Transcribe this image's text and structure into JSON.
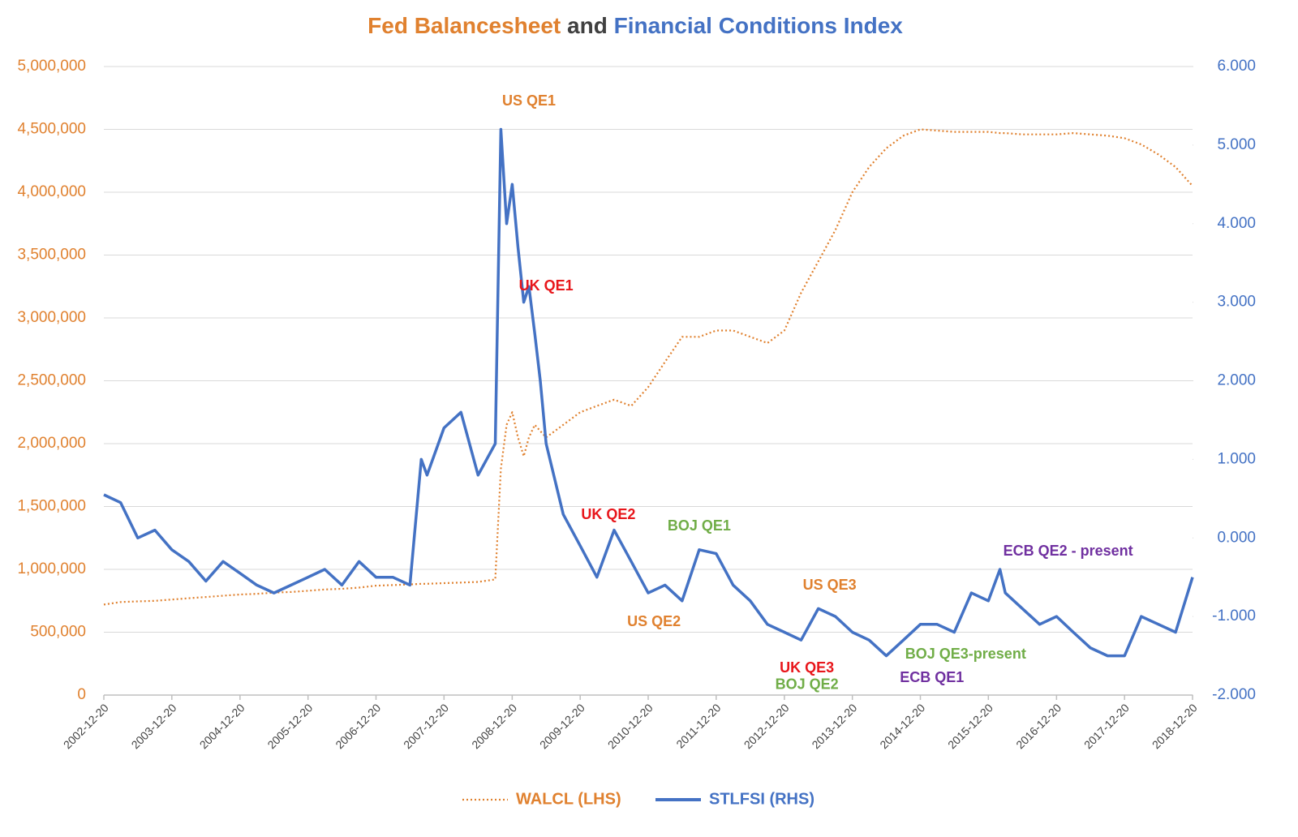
{
  "chart_data": {
    "type": "line",
    "title_parts": [
      {
        "text": "Fed Balancesheet",
        "color": "#e0812f"
      },
      {
        "text": "and",
        "color": "#404040"
      },
      {
        "text": "Financial Conditions Index",
        "color": "#4472c4"
      }
    ],
    "x": [
      "2002-12-20",
      "2003-03-20",
      "2003-06-20",
      "2003-09-20",
      "2003-12-20",
      "2004-03-20",
      "2004-06-20",
      "2004-09-20",
      "2004-12-20",
      "2005-03-20",
      "2005-06-20",
      "2005-09-20",
      "2005-12-20",
      "2006-03-20",
      "2006-06-20",
      "2006-09-20",
      "2006-12-20",
      "2007-03-20",
      "2007-06-20",
      "2007-08-20",
      "2007-09-20",
      "2007-12-20",
      "2008-03-20",
      "2008-06-20",
      "2008-09-20",
      "2008-10-20",
      "2008-11-20",
      "2008-12-20",
      "2009-01-20",
      "2009-02-20",
      "2009-03-20",
      "2009-04-20",
      "2009-05-20",
      "2009-06-20",
      "2009-09-20",
      "2009-12-20",
      "2010-03-20",
      "2010-06-20",
      "2010-09-20",
      "2010-12-20",
      "2011-03-20",
      "2011-06-20",
      "2011-09-20",
      "2011-12-20",
      "2012-03-20",
      "2012-06-20",
      "2012-09-20",
      "2012-12-20",
      "2013-03-20",
      "2013-06-20",
      "2013-09-20",
      "2013-12-20",
      "2014-03-20",
      "2014-06-20",
      "2014-09-20",
      "2014-12-20",
      "2015-03-20",
      "2015-06-20",
      "2015-09-20",
      "2015-12-20",
      "2016-02-20",
      "2016-03-20",
      "2016-06-20",
      "2016-09-20",
      "2016-12-20",
      "2017-03-20",
      "2017-06-20",
      "2017-09-20",
      "2017-12-20",
      "2018-03-20",
      "2018-06-20",
      "2018-09-20",
      "2018-12-20"
    ],
    "series": [
      {
        "name": "WALCL (LHS)",
        "color": "#e0812f",
        "style": "dotted",
        "axis": "y",
        "values": [
          720000,
          740000,
          745000,
          750000,
          760000,
          770000,
          780000,
          790000,
          800000,
          805000,
          815000,
          820000,
          830000,
          840000,
          845000,
          855000,
          870000,
          875000,
          880000,
          885000,
          885000,
          890000,
          895000,
          900000,
          920000,
          1800000,
          2150000,
          2250000,
          2050000,
          1900000,
          2050000,
          2150000,
          2100000,
          2050000,
          2150000,
          2250000,
          2300000,
          2350000,
          2300000,
          2450000,
          2650000,
          2850000,
          2850000,
          2900000,
          2900000,
          2850000,
          2800000,
          2900000,
          3200000,
          3450000,
          3700000,
          4000000,
          4200000,
          4350000,
          4450000,
          4500000,
          4490000,
          4480000,
          4480000,
          4480000,
          4470000,
          4470000,
          4460000,
          4460000,
          4460000,
          4470000,
          4460000,
          4450000,
          4430000,
          4380000,
          4300000,
          4200000,
          4050000
        ]
      },
      {
        "name": "STLFSI (RHS)",
        "color": "#4472c4",
        "style": "solid",
        "axis": "y2",
        "values": [
          0.55,
          0.45,
          0.0,
          0.1,
          -0.15,
          -0.3,
          -0.55,
          -0.3,
          -0.45,
          -0.6,
          -0.7,
          -0.6,
          -0.5,
          -0.4,
          -0.6,
          -0.3,
          -0.5,
          -0.5,
          -0.6,
          1.0,
          0.8,
          1.4,
          1.6,
          0.8,
          1.2,
          5.2,
          4.0,
          4.5,
          3.7,
          3.0,
          3.2,
          2.6,
          2.0,
          1.2,
          0.3,
          -0.1,
          -0.5,
          0.1,
          -0.3,
          -0.7,
          -0.6,
          -0.8,
          -0.15,
          -0.2,
          -0.6,
          -0.8,
          -1.1,
          -1.2,
          -1.3,
          -0.9,
          -1.0,
          -1.2,
          -1.3,
          -1.5,
          -1.3,
          -1.1,
          -1.1,
          -1.2,
          -0.7,
          -0.8,
          -0.4,
          -0.7,
          -0.9,
          -1.1,
          -1.0,
          -1.2,
          -1.4,
          -1.5,
          -1.5,
          -1.0,
          -1.1,
          -1.2,
          -0.5
        ]
      }
    ],
    "xlim": [
      "2002-12-20",
      "2018-12-20"
    ],
    "xticks": [
      "2002-12-20",
      "2003-12-20",
      "2004-12-20",
      "2005-12-20",
      "2006-12-20",
      "2007-12-20",
      "2008-12-20",
      "2009-12-20",
      "2010-12-20",
      "2011-12-20",
      "2012-12-20",
      "2013-12-20",
      "2014-12-20",
      "2015-12-20",
      "2016-12-20",
      "2017-12-20",
      "2018-12-20"
    ],
    "ylim": [
      0,
      5000000
    ],
    "yticks": [
      0,
      {
        "value": 500000,
        "label": "500,000"
      },
      {
        "value": 1000000,
        "label": "1,000,000"
      },
      {
        "value": 1500000,
        "label": "1,500,000"
      },
      {
        "value": 2000000,
        "label": "2,000,000"
      },
      {
        "value": 2500000,
        "label": "2,500,000"
      },
      {
        "value": 3000000,
        "label": "3,000,000"
      },
      {
        "value": 3500000,
        "label": "3,500,000"
      },
      {
        "value": 4000000,
        "label": "4,000,000"
      },
      {
        "value": 4500000,
        "label": "4,500,000"
      },
      {
        "value": 5000000,
        "label": "5,000,000"
      }
    ],
    "y2lim": [
      -2,
      6
    ],
    "y2ticks": [
      {
        "value": -2,
        "label": "-2.000"
      },
      {
        "value": -1,
        "label": "-1.000"
      },
      {
        "value": 0,
        "label": "0.000"
      },
      {
        "value": 1,
        "label": "1.000"
      },
      {
        "value": 2,
        "label": "2.000"
      },
      {
        "value": 3,
        "label": "3.000"
      },
      {
        "value": 4,
        "label": "4.000"
      },
      {
        "value": 5,
        "label": "5.000"
      },
      {
        "value": 6,
        "label": "6.000"
      }
    ],
    "grid": true,
    "legend": "bottom",
    "annotations": [
      {
        "text": "US QE1",
        "color": "#e0812f",
        "x": "2009-03-20",
        "y": 4720000
      },
      {
        "text": "UK QE1",
        "color": "#e8161b",
        "x": "2009-06-20",
        "y": 3250000
      },
      {
        "text": "UK QE2",
        "color": "#e8161b",
        "x": "2010-05-20",
        "y": 1430000
      },
      {
        "text": "US QE2",
        "color": "#e0812f",
        "x": "2011-01-20",
        "y": 580000
      },
      {
        "text": "BOJ QE1",
        "color": "#70ad47",
        "x": "2011-09-20",
        "y": 1340000
      },
      {
        "text": "US QE3",
        "color": "#e0812f",
        "x": "2013-08-20",
        "y": 870000
      },
      {
        "text": "UK QE3",
        "color": "#e8161b",
        "x": "2013-04-20",
        "y": 210000
      },
      {
        "text": "BOJ QE2",
        "color": "#70ad47",
        "x": "2013-04-20",
        "y": 80000
      },
      {
        "text": "ECB QE1",
        "color": "#7030a0",
        "x": "2015-02-20",
        "y": 135000
      },
      {
        "text": "BOJ QE3-present",
        "color": "#70ad47",
        "x": "2015-08-20",
        "y": 320000
      },
      {
        "text": "ECB QE2 - present",
        "color": "#7030a0",
        "x": "2017-02-20",
        "y": 1140000
      }
    ]
  }
}
